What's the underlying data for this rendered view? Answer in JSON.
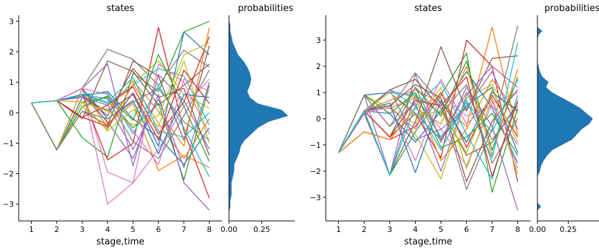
{
  "colors": [
    "#1f77b4",
    "#ff7f0e",
    "#2ca02c",
    "#d62728",
    "#9467bd",
    "#8c564b",
    "#e377c2",
    "#7f7f7f",
    "#bcbd22",
    "#17becf"
  ],
  "density_color": "#1f77b4",
  "chart_data": [
    {
      "type": "line",
      "title": "states",
      "xlabel": "stage,time",
      "ylabel": "",
      "x": [
        1,
        2,
        3,
        4,
        5,
        6,
        7,
        8
      ],
      "xticks": [
        "1",
        "2",
        "3",
        "4",
        "5",
        "6",
        "7",
        "8"
      ],
      "ylim": [
        -3.55,
        3.2
      ],
      "yticks": [
        -3,
        -2,
        -1,
        0,
        1,
        2,
        3
      ],
      "ytick_labels": [
        "−3",
        "−2",
        "−1",
        "0",
        "1",
        "2",
        "3"
      ],
      "series": [
        {
          "values": [
            0.32,
            0.4,
            0.55,
            0.7,
            -0.2,
            -0.8,
            -1.7,
            -0.5
          ]
        },
        {
          "values": [
            0.32,
            -1.22,
            0.8,
            -0.35,
            0.3,
            -1.9,
            -1.4,
            -1.8
          ]
        },
        {
          "values": [
            0.32,
            0.4,
            -0.82,
            -1.45,
            1.3,
            0.7,
            2.65,
            3.0
          ]
        },
        {
          "values": [
            0.32,
            0.4,
            0.6,
            -1.55,
            -1.0,
            2.8,
            -0.6,
            -2.8
          ]
        },
        {
          "values": [
            0.32,
            0.4,
            0.8,
            1.6,
            -1.75,
            1.25,
            0.4,
            -1.2
          ]
        },
        {
          "values": [
            0.32,
            0.4,
            -0.2,
            1.7,
            1.35,
            0.25,
            0.9,
            1.6
          ]
        },
        {
          "values": [
            0.32,
            0.4,
            0.8,
            -3.0,
            -2.3,
            -1.2,
            0.2,
            1.1
          ]
        },
        {
          "values": [
            0.32,
            0.4,
            0.8,
            2.08,
            1.75,
            0.9,
            2.05,
            1.5
          ]
        },
        {
          "values": [
            0.32,
            -1.22,
            0.2,
            -0.55,
            0.95,
            1.7,
            0.6,
            0.15
          ]
        },
        {
          "values": [
            0.32,
            0.4,
            0.6,
            0.3,
            0.9,
            1.45,
            1.2,
            -0.4
          ]
        },
        {
          "values": [
            0.32,
            -1.22,
            0.5,
            0.05,
            0.6,
            -1.1,
            2.65,
            1.9
          ]
        },
        {
          "values": [
            0.32,
            0.4,
            0.8,
            -0.5,
            0.95,
            -0.35,
            -1.5,
            -0.2
          ]
        },
        {
          "values": [
            0.32,
            -1.22,
            0.35,
            0.5,
            -0.5,
            0.3,
            -2.2,
            0.9
          ]
        },
        {
          "values": [
            0.32,
            0.4,
            -0.15,
            0.25,
            0.85,
            -0.7,
            0.35,
            2.5
          ]
        },
        {
          "values": [
            0.32,
            0.4,
            0.6,
            -0.3,
            -1.5,
            0.6,
            -2.3,
            -3.2
          ]
        },
        {
          "values": [
            0.32,
            -1.22,
            0.05,
            -0.4,
            1.7,
            1.2,
            -0.9,
            2.2
          ]
        },
        {
          "values": [
            0.32,
            0.4,
            0.8,
            -1.95,
            -2.3,
            1.6,
            1.0,
            -0.7
          ]
        },
        {
          "values": [
            0.32,
            0.4,
            0.6,
            0.45,
            -0.95,
            -1.5,
            -0.1,
            1.4
          ]
        },
        {
          "values": [
            0.32,
            -1.22,
            0.35,
            -0.6,
            0.1,
            -0.45,
            1.7,
            -1.0
          ]
        },
        {
          "values": [
            0.32,
            0.4,
            0.6,
            0.65,
            -0.7,
            0.9,
            -0.5,
            -2.1
          ]
        },
        {
          "values": [
            0.32,
            0.4,
            0.8,
            -0.2,
            0.4,
            -1.35,
            0.6,
            0.5
          ]
        },
        {
          "values": [
            0.32,
            0.4,
            0.35,
            0.1,
            1.05,
            0.05,
            -1.1,
            2.8
          ]
        },
        {
          "values": [
            0.32,
            -1.22,
            0.2,
            0.55,
            -0.25,
            1.9,
            0.2,
            -1.6
          ]
        },
        {
          "values": [
            0.32,
            0.4,
            -0.15,
            -0.45,
            0.65,
            -0.9,
            1.4,
            0.3
          ]
        },
        {
          "values": [
            0.32,
            0.4,
            0.5,
            0.25,
            -1.2,
            0.45,
            -1.8,
            1.0
          ]
        },
        {
          "values": [
            0.32,
            0.4,
            0.6,
            -0.1,
            1.45,
            0.5,
            0.8,
            -1.4
          ]
        },
        {
          "values": [
            0.32,
            0.4,
            0.8,
            0.6,
            -0.6,
            -1.7,
            1.1,
            0.7
          ]
        },
        {
          "values": [
            0.32,
            -1.22,
            0.05,
            -0.2,
            0.35,
            0.8,
            -0.3,
            -0.9
          ]
        },
        {
          "values": [
            0.32,
            0.4,
            0.35,
            0.05,
            -0.4,
            -0.1,
            1.9,
            2.3
          ]
        },
        {
          "values": [
            0.32,
            0.4,
            0.6,
            0.35,
            1.15,
            -0.6,
            -0.8,
            0.0
          ]
        }
      ]
    },
    {
      "type": "area",
      "title": "probabilities",
      "xlabel": "",
      "ylabel": "",
      "xlim": [
        0,
        0.5
      ],
      "xticks": [
        0.0,
        0.25
      ],
      "xtick_labels": [
        "0.00",
        "0.25"
      ],
      "ylim": [
        -3.55,
        3.2
      ],
      "y": [
        -3.25,
        -3.1,
        -2.9,
        -2.7,
        -2.5,
        -2.3,
        -2.1,
        -1.9,
        -1.7,
        -1.5,
        -1.3,
        -1.1,
        -0.9,
        -0.7,
        -0.5,
        -0.3,
        -0.1,
        0.1,
        0.3,
        0.5,
        0.7,
        0.9,
        1.1,
        1.3,
        1.5,
        1.7,
        1.9,
        2.1,
        2.3,
        2.5,
        2.7,
        2.9,
        3.0
      ],
      "values": [
        0.0,
        0.01,
        0.01,
        0.02,
        0.02,
        0.02,
        0.03,
        0.04,
        0.04,
        0.06,
        0.08,
        0.09,
        0.12,
        0.17,
        0.22,
        0.3,
        0.45,
        0.4,
        0.22,
        0.16,
        0.14,
        0.16,
        0.17,
        0.16,
        0.14,
        0.11,
        0.07,
        0.05,
        0.03,
        0.02,
        0.01,
        0.01,
        0.0
      ]
    },
    {
      "type": "line",
      "title": "states",
      "xlabel": "stage,time",
      "ylabel": "",
      "x": [
        1,
        2,
        3,
        4,
        5,
        6,
        7,
        8
      ],
      "xticks": [
        "1",
        "2",
        "3",
        "4",
        "5",
        "6",
        "7",
        "8"
      ],
      "ylim": [
        -3.9,
        3.95
      ],
      "yticks": [
        -3,
        -2,
        -1,
        0,
        1,
        2,
        3
      ],
      "ytick_labels": [
        "−3",
        "−2",
        "−1",
        "0",
        "1",
        "2",
        "3"
      ],
      "series": [
        {
          "values": [
            -1.3,
            0.9,
            1.0,
            0.2,
            -0.8,
            0.5,
            1.2,
            -1.3
          ]
        },
        {
          "values": [
            -1.3,
            0.3,
            0.7,
            1.1,
            0.6,
            -0.3,
            3.5,
            -0.6
          ]
        },
        {
          "values": [
            -1.3,
            0.3,
            -2.15,
            -0.5,
            0.9,
            2.5,
            -2.8,
            0.4
          ]
        },
        {
          "values": [
            -1.3,
            0.3,
            -0.7,
            0.2,
            -1.5,
            3.0,
            2.0,
            -2.4
          ]
        },
        {
          "values": [
            -1.3,
            0.9,
            -2.15,
            1.7,
            -0.9,
            1.2,
            -0.3,
            -3.5
          ]
        },
        {
          "values": [
            -1.3,
            0.2,
            -2.15,
            -0.1,
            2.75,
            0.3,
            2.3,
            2.4
          ]
        },
        {
          "values": [
            -1.3,
            0.3,
            1.1,
            0.8,
            -0.4,
            -1.8,
            0.6,
            1.0
          ]
        },
        {
          "values": [
            -1.3,
            0.9,
            0.4,
            1.75,
            0.6,
            -2.7,
            -0.4,
            3.55
          ]
        },
        {
          "values": [
            -1.3,
            0.3,
            0.5,
            -0.6,
            -2.3,
            0.8,
            1.3,
            -0.2
          ]
        },
        {
          "values": [
            -1.3,
            0.3,
            1.1,
            0.5,
            1.4,
            -0.6,
            -2.3,
            0.9
          ]
        },
        {
          "values": [
            -1.3,
            0.3,
            0.2,
            -0.9,
            0.3,
            1.8,
            0.4,
            -1.7
          ]
        },
        {
          "values": [
            -1.3,
            0.9,
            0.4,
            0.8,
            -1.6,
            -0.4,
            1.5,
            0.2
          ]
        },
        {
          "values": [
            -1.3,
            0.3,
            -0.7,
            1.2,
            0.1,
            2.2,
            -1.2,
            1.6
          ]
        },
        {
          "values": [
            -1.3,
            -0.5,
            -0.8,
            -0.3,
            1.0,
            -1.1,
            0.9,
            -0.7
          ]
        },
        {
          "values": [
            -1.3,
            0.9,
            -0.3,
            0.6,
            -2.0,
            0.9,
            2.0,
            1.2
          ]
        },
        {
          "values": [
            -1.3,
            0.3,
            1.1,
            1.5,
            0.4,
            -1.4,
            -0.9,
            0.6
          ]
        },
        {
          "values": [
            -1.3,
            0.2,
            0.5,
            -1.6,
            0.9,
            0.1,
            0.5,
            -1.0
          ]
        },
        {
          "values": [
            -1.3,
            0.3,
            -2.15,
            0.9,
            0.2,
            1.3,
            -1.7,
            0.0
          ]
        },
        {
          "values": [
            -1.3,
            0.9,
            0.4,
            -0.2,
            1.2,
            -1.9,
            0.8,
            -2.1
          ]
        },
        {
          "values": [
            -1.3,
            0.3,
            1.0,
            0.9,
            -0.7,
            0.6,
            -0.5,
            1.5
          ]
        },
        {
          "values": [
            -1.3,
            0.3,
            0.6,
            -2.05,
            0.7,
            -0.9,
            1.0,
            0.3
          ]
        },
        {
          "values": [
            -1.3,
            -0.5,
            -0.8,
            0.4,
            -0.2,
            2.0,
            -1.4,
            1.9
          ]
        },
        {
          "values": [
            -1.3,
            0.9,
            0.2,
            1.0,
            -1.1,
            -0.7,
            0.2,
            -1.4
          ]
        },
        {
          "values": [
            -1.3,
            0.3,
            -0.7,
            0.7,
            0.5,
            1.6,
            -2.2,
            0.7
          ]
        },
        {
          "values": [
            -1.3,
            0.2,
            1.1,
            -0.8,
            -0.4,
            0.4,
            1.8,
            -0.4
          ]
        },
        {
          "values": [
            -1.3,
            0.3,
            0.5,
            1.3,
            0.8,
            -2.4,
            -0.1,
            1.1
          ]
        },
        {
          "values": [
            -1.3,
            0.3,
            0.4,
            -0.4,
            1.5,
            -0.2,
            0.7,
            -1.9
          ]
        },
        {
          "values": [
            -1.3,
            0.9,
            -0.3,
            1.2,
            -0.8,
            1.0,
            -0.8,
            0.5
          ]
        },
        {
          "values": [
            -1.3,
            0.3,
            1.0,
            0.1,
            0.3,
            -1.3,
            1.1,
            -0.9
          ]
        },
        {
          "values": [
            -1.3,
            0.3,
            -2.15,
            0.5,
            -1.2,
            0.7,
            -1.5,
            2.9
          ]
        }
      ]
    },
    {
      "type": "area",
      "title": "probabilities",
      "xlabel": "",
      "ylabel": "",
      "xlim": [
        0,
        0.5
      ],
      "xticks": [
        0.0,
        0.25
      ],
      "xtick_labels": [
        "0.00",
        "0.25"
      ],
      "ylim": [
        -3.9,
        3.95
      ],
      "y": [
        -3.5,
        -3.35,
        -3.2,
        -3.0,
        -2.8,
        -2.6,
        -2.4,
        -2.2,
        -2.0,
        -1.8,
        -1.6,
        -1.4,
        -1.2,
        -1.0,
        -0.8,
        -0.6,
        -0.4,
        -0.2,
        0.0,
        0.2,
        0.4,
        0.6,
        0.8,
        1.0,
        1.2,
        1.4,
        1.6,
        1.8,
        2.0,
        2.2,
        2.4,
        2.6,
        2.8,
        3.0,
        3.2,
        3.35,
        3.5,
        3.6
      ],
      "values": [
        0.0,
        0.03,
        0.0,
        0.0,
        0.0,
        0.0,
        0.0,
        0.0,
        0.02,
        0.03,
        0.05,
        0.08,
        0.12,
        0.2,
        0.28,
        0.32,
        0.36,
        0.42,
        0.45,
        0.4,
        0.35,
        0.28,
        0.2,
        0.12,
        0.07,
        0.09,
        0.04,
        0.02,
        0.01,
        0.0,
        0.0,
        0.0,
        0.0,
        0.0,
        0.01,
        0.04,
        0.0,
        0.0
      ]
    }
  ]
}
